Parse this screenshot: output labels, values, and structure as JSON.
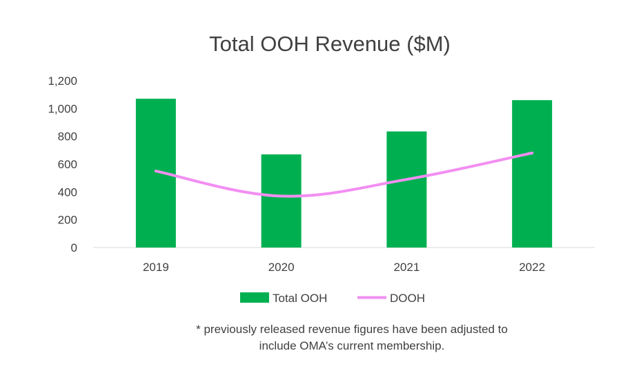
{
  "chart_data": {
    "type": "bar",
    "title": "Total OOH Revenue ($M)",
    "categories": [
      "2019",
      "2020",
      "2021",
      "2022"
    ],
    "series": [
      {
        "name": "Total OOH",
        "type": "bar",
        "color": "#00b050",
        "values": [
          1070,
          670,
          835,
          1060
        ]
      },
      {
        "name": "DOOH",
        "type": "line",
        "color": "#f28ef2",
        "values": [
          550,
          370,
          490,
          680
        ]
      }
    ],
    "ylim": [
      0,
      1200
    ],
    "yticks": [
      "0",
      "200",
      "400",
      "600",
      "800",
      "1,000",
      "1,200"
    ],
    "xlabel": "",
    "ylabel": "",
    "legend": "bottom",
    "grid": false
  },
  "footnote": {
    "line1": "* previously released revenue figures have been adjusted to",
    "line2": "include OMA’s current membership."
  }
}
